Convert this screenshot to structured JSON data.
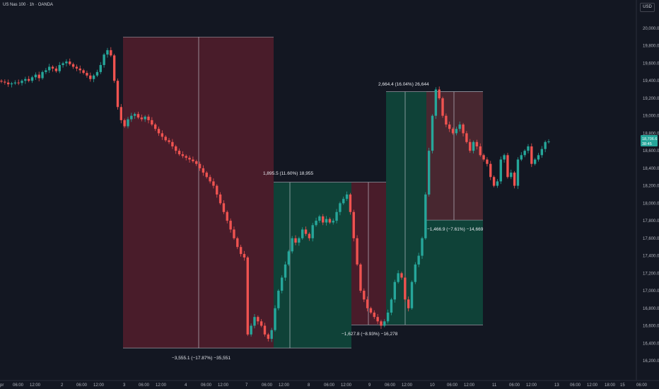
{
  "header": {
    "symbol_title": "US Nas 100 · 1h · OANDA",
    "currency_button": "USD"
  },
  "colors": {
    "background": "#131722",
    "up_candle": "#26a69a",
    "down_candle": "#ef5350",
    "loss_zone": "#5c1f2e",
    "gain_zone": "#0f4a3c",
    "price_badge": "#26a69a"
  },
  "price_axis": {
    "labels": [
      "20,000.0",
      "19,800.0",
      "19,600.0",
      "19,400.0",
      "19,200.0",
      "19,000.0",
      "18,800.0",
      "18,600.0",
      "18,400.0",
      "18,200.0",
      "18,000.0",
      "17,800.0",
      "17,600.0",
      "17,400.0",
      "17,200.0",
      "17,000.0",
      "16,800.0",
      "16,600.0",
      "16,400.0",
      "16,200.0"
    ],
    "current_price": "18,706.6",
    "current_countdown": "38:45"
  },
  "time_axis": {
    "labels": [
      "pr",
      "06:00",
      "12:00",
      "2",
      "06:00",
      "12:00",
      "3",
      "06:00",
      "12:00",
      "4",
      "06:00",
      "12:00",
      "7",
      "06:00",
      "12:00",
      "8",
      "06:00",
      "12:00",
      "9",
      "06:00",
      "12:00",
      "10",
      "06:00",
      "12:00",
      "11",
      "06:00",
      "12:00",
      "13",
      "06:00",
      "12:00",
      "18:00",
      "15",
      "06:00"
    ]
  },
  "measurements": [
    {
      "label": "−3,555.1 (−17.87%) −35,551",
      "direction": "down"
    },
    {
      "label": "1,895.5 (11.60%) 18,955",
      "direction": "up"
    },
    {
      "label": "−1,627.8 (−8.93%) −16,278",
      "direction": "down"
    },
    {
      "label": "2,664.4 (16.04%) 26,644",
      "direction": "up"
    },
    {
      "label": "−1,466.9 (−7.61%) −14,669",
      "direction": "down"
    }
  ],
  "chart_data": {
    "type": "candlestick",
    "title": "US Nas 100 · 1h · OANDA",
    "y_range": [
      16200,
      20100
    ],
    "series": [
      {
        "values": [
          19390,
          19380,
          19360,
          19370,
          19380,
          19375,
          19400,
          19420,
          19400,
          19440,
          19470,
          19430,
          19500,
          19520,
          19560,
          19540,
          19510,
          19580,
          19600,
          19620,
          19590,
          19560,
          19540,
          19520,
          19490,
          19460,
          19420,
          19460,
          19500,
          19580,
          19700,
          19750,
          19690,
          19400,
          19100,
          18950,
          18880,
          18960,
          19000,
          19020,
          18980,
          18960,
          18990,
          18950,
          18900,
          18850,
          18800,
          18760,
          18720,
          18700,
          18650,
          18600,
          18560,
          18540,
          18520,
          18500,
          18480,
          18450,
          18400,
          18350,
          18300,
          18250,
          18200,
          18100,
          18000,
          17900,
          17800,
          17700,
          17600,
          17500,
          17420,
          17380,
          16500,
          16600,
          16700,
          16650,
          16600,
          16500,
          16450,
          16550,
          16800,
          17000,
          17150,
          17300,
          17450,
          17600,
          17550,
          17600,
          17700,
          17650,
          17600,
          17750,
          17800,
          17850,
          17780,
          17820,
          17780,
          17800,
          17900,
          18000,
          18050,
          18100,
          17900,
          17600,
          17300,
          17000,
          16900,
          16800,
          16750,
          16700,
          16650,
          16600,
          16650,
          16750,
          16900,
          17100,
          17200,
          17150,
          16900,
          16800,
          17100,
          17300,
          17400,
          17600,
          18100,
          18600,
          19000,
          19300,
          19200,
          19000,
          18900,
          18850,
          18800,
          18850,
          18900,
          18800,
          18700,
          18600,
          18700,
          18650,
          18550,
          18500,
          18450,
          18300,
          18200,
          18250,
          18500,
          18550,
          18300,
          18350,
          18200,
          18500,
          18550,
          18600,
          18650,
          18450,
          18500,
          18550,
          18620,
          18700,
          18706
        ]
      }
    ]
  }
}
